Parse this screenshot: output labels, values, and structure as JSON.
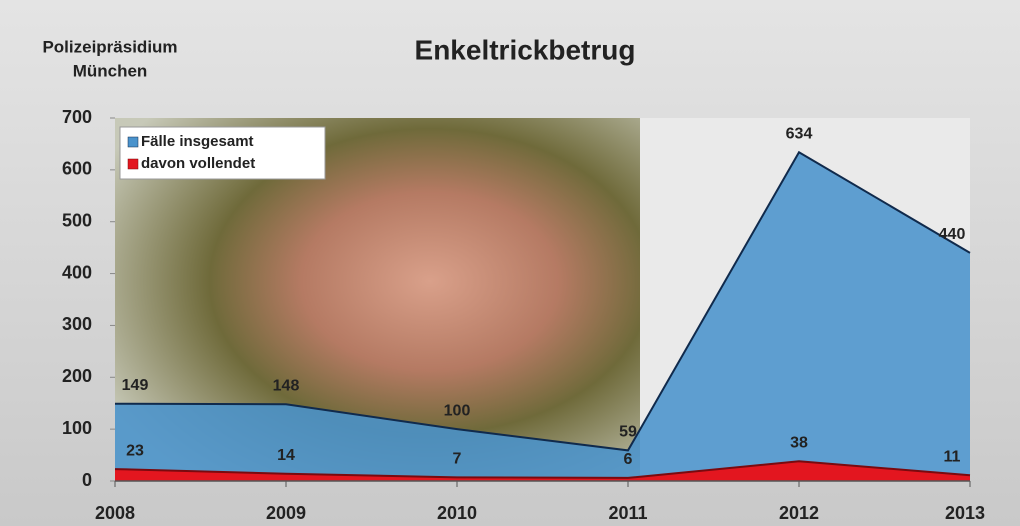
{
  "chart_data": {
    "type": "area",
    "title": "Enkeltrickbetrug",
    "corner_label": [
      "Polizeipräsidium",
      "München"
    ],
    "x": [
      2008,
      2009,
      2010,
      2011,
      2012,
      2013
    ],
    "xlim": [
      2008,
      2013
    ],
    "xticks": [
      2008,
      2009,
      2010,
      2011,
      2012,
      2013
    ],
    "ylim": [
      0,
      700
    ],
    "yticks": [
      0,
      100,
      200,
      300,
      400,
      500,
      600,
      700
    ],
    "legend": "top-left",
    "series": [
      {
        "name": "Fälle insgesamt",
        "color": "#4a93cc",
        "values": [
          149,
          148,
          100,
          59,
          634,
          440
        ]
      },
      {
        "name": "davon vollendet",
        "color": "#e3161f",
        "values": [
          23,
          14,
          7,
          6,
          38,
          11
        ]
      }
    ]
  }
}
